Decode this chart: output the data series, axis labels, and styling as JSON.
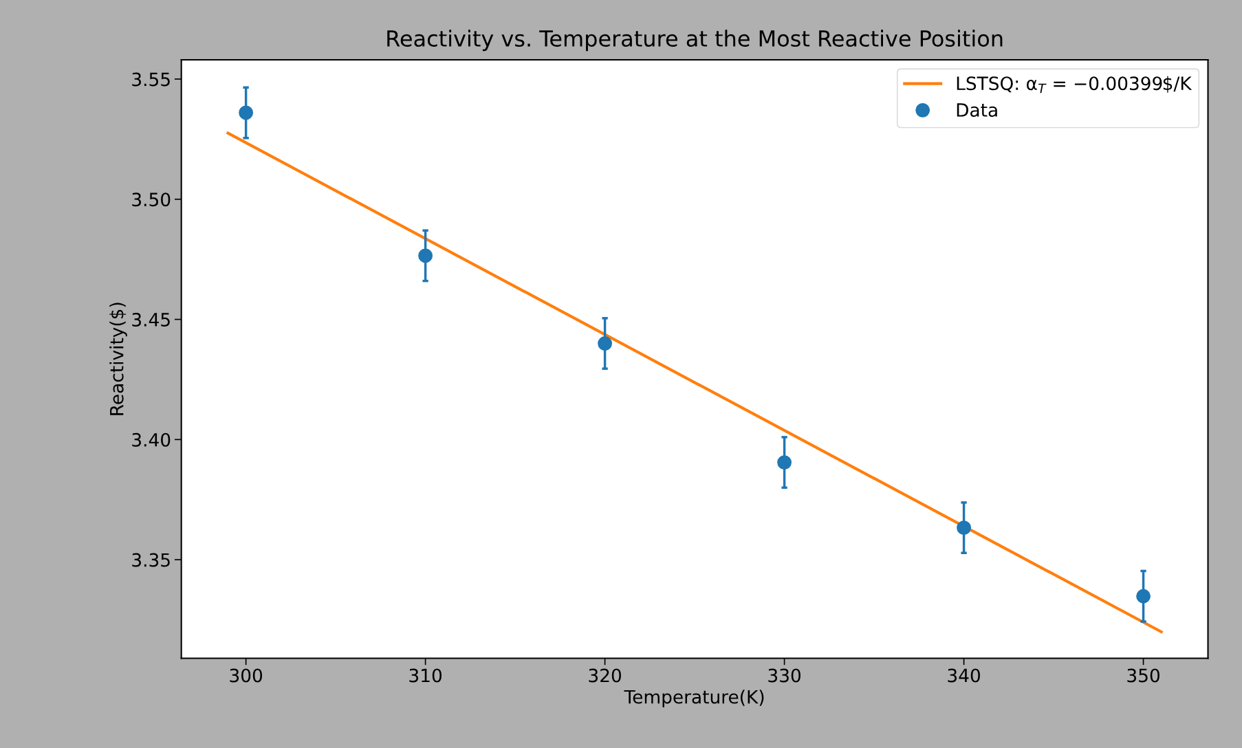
{
  "chart_data": {
    "type": "scatter",
    "title": "Reactivity vs. Temperature at the Most Reactive Position",
    "xlabel": "Temperature(K)",
    "ylabel": "Reactivity($)",
    "xlim": [
      296.4,
      353.6
    ],
    "ylim": [
      3.309,
      3.558
    ],
    "xticks": [
      300,
      310,
      320,
      330,
      340,
      350
    ],
    "yticks": [
      {
        "value": 3.35,
        "label": "3.35"
      },
      {
        "value": 3.4,
        "label": "3.40"
      },
      {
        "value": 3.45,
        "label": "3.45"
      },
      {
        "value": 3.5,
        "label": "3.50"
      },
      {
        "value": 3.55,
        "label": "3.55"
      }
    ],
    "legend": "top right",
    "grid": false,
    "series": [
      {
        "name": "LSTSQ: α$_{T}$ = −0.00399$/K",
        "type": "line",
        "color": "#ff7f0e",
        "x": [
          299,
          351
        ],
        "values": [
          3.5275,
          3.32
        ],
        "line_style": "solid"
      },
      {
        "name": "Data",
        "marker": "circle",
        "color": "#1f77b4",
        "x": [
          300,
          310,
          320,
          330,
          340,
          350
        ],
        "values": [
          3.536,
          3.4765,
          3.44,
          3.3905,
          3.3633,
          3.3348
        ],
        "errors": [
          0.0105,
          0.0105,
          0.0105,
          0.0105,
          0.0105,
          0.0105
        ]
      }
    ]
  }
}
